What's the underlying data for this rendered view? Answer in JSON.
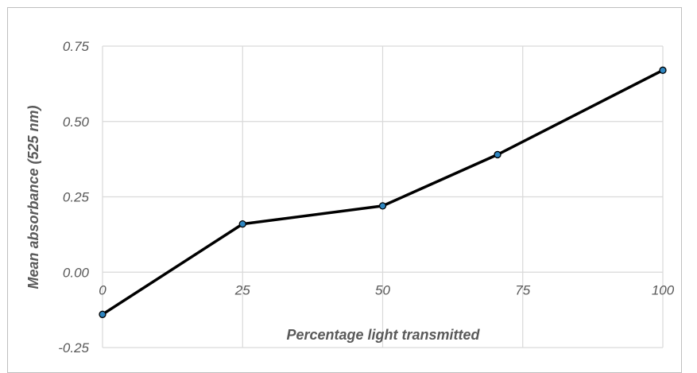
{
  "chart_data": {
    "type": "line",
    "title": "",
    "xlabel": "Percentage light transmitted",
    "ylabel": "Mean absorbance (525 nm)",
    "xlim": [
      0,
      100
    ],
    "ylim": [
      -0.25,
      0.75
    ],
    "xticks": [
      0,
      25,
      50,
      75,
      100
    ],
    "yticks": [
      0.75,
      0.5,
      0.25,
      0.0,
      -0.25
    ],
    "xtick_labels": [
      "0",
      "25",
      "50",
      "75",
      "100"
    ],
    "ytick_labels": [
      "0.75",
      "0.50",
      "0.25",
      "0.00",
      "-0.25"
    ],
    "grid": true,
    "legend": "none",
    "series": [
      {
        "x": [
          0,
          25,
          50,
          70.5,
          100
        ],
        "y": [
          -0.14,
          0.16,
          0.22,
          0.39,
          0.67
        ],
        "line_color": "#000000",
        "marker_color": "#2e86c1"
      }
    ]
  }
}
